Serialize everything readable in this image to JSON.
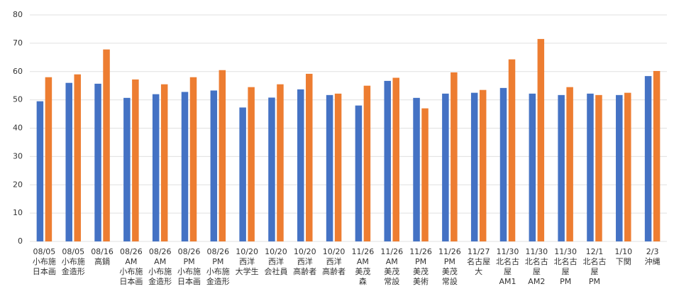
{
  "chart_data": {
    "type": "bar",
    "categories": [
      [
        "08/05",
        "小布施",
        "日本画"
      ],
      [
        "08/05",
        "小布施",
        "金造形"
      ],
      [
        "08/16",
        "高鍋"
      ],
      [
        "08/26",
        "AM",
        "小布施",
        "日本画"
      ],
      [
        "08/26",
        "AM",
        "小布施",
        "金造形"
      ],
      [
        "08/26",
        "PM",
        "小布施",
        "日本画"
      ],
      [
        "08/26",
        "PM",
        "小布施",
        "金造形"
      ],
      [
        "10/20",
        "西洋",
        "大学生"
      ],
      [
        "10/20",
        "西洋",
        "会社員"
      ],
      [
        "10/20",
        "西洋",
        "高齢者"
      ],
      [
        "10/20",
        "西洋",
        "高齢者"
      ],
      [
        "11/26",
        "AM",
        "美茂",
        "森"
      ],
      [
        "11/26",
        "AM",
        "美茂",
        "常設"
      ],
      [
        "11/26",
        "PM",
        "美茂",
        "美術"
      ],
      [
        "11/26",
        "PM",
        "美茂",
        "常設"
      ],
      [
        "11/27",
        "名古屋",
        "大"
      ],
      [
        "11/30",
        "北名古",
        "屋",
        "AM1"
      ],
      [
        "11/30",
        "北名古",
        "屋",
        "AM2"
      ],
      [
        "11/30",
        "北名古",
        "屋",
        "PM"
      ],
      [
        "12/1",
        "北名古",
        "屋",
        "PM"
      ],
      [
        "1/10",
        "下関"
      ],
      [
        "2/3",
        "沖縄"
      ]
    ],
    "series": [
      {
        "color": "#4472c4",
        "values": [
          49.5,
          56,
          55.7,
          50.7,
          52,
          52.8,
          53.3,
          47.3,
          50.8,
          53.7,
          51.7,
          48,
          56.7,
          50.7,
          52.2,
          52.5,
          54.2,
          52.2,
          51.7,
          52.2,
          51.7,
          58.4
        ]
      },
      {
        "color": "#ed7d31",
        "values": [
          58,
          59,
          67.8,
          57.2,
          55.5,
          58,
          60.5,
          54.5,
          55.5,
          59.2,
          52.2,
          55,
          57.8,
          47,
          59.7,
          53.5,
          64.3,
          71.5,
          54.5,
          51.7,
          52.5,
          60.2
        ]
      }
    ],
    "ylim": [
      0,
      80
    ],
    "yticks": [
      0,
      10,
      20,
      30,
      40,
      50,
      60,
      70,
      80
    ],
    "grid": true
  }
}
